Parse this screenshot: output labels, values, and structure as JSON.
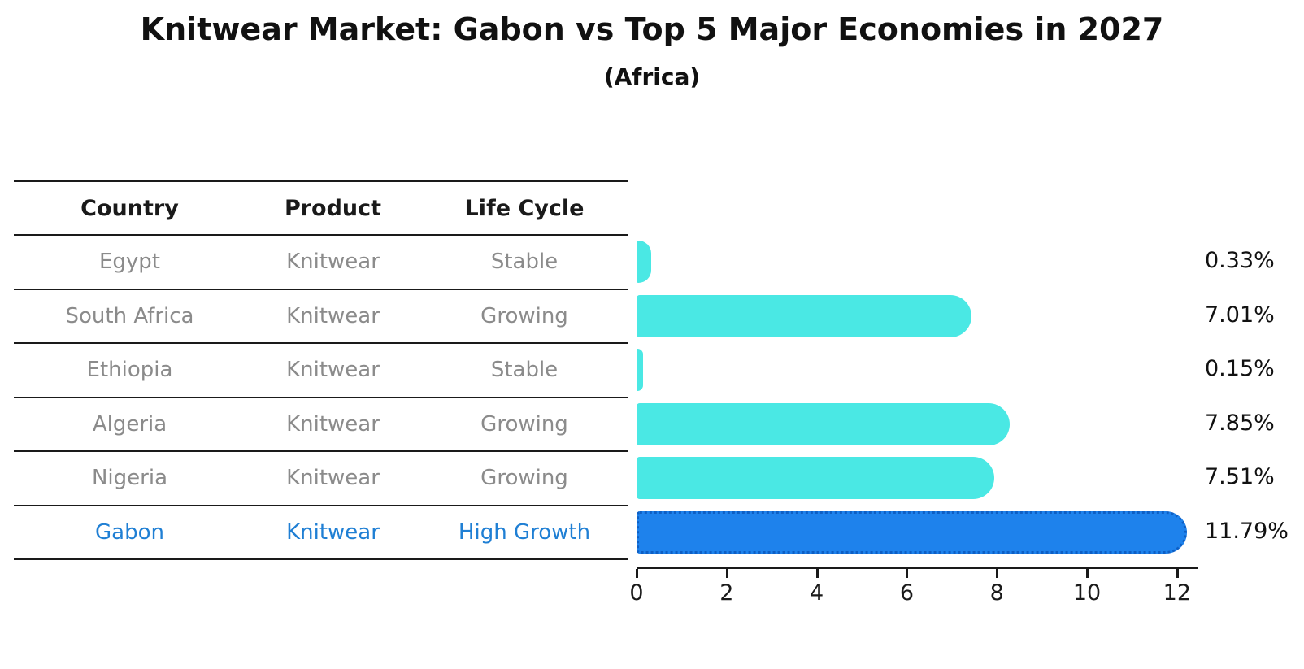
{
  "title": "Knitwear Market: Gabon vs Top 5 Major Economies in 2027",
  "subtitle": "(Africa)",
  "table": {
    "headers": [
      "Country",
      "Product",
      "Life Cycle"
    ],
    "rows": [
      {
        "country": "Egypt",
        "product": "Knitwear",
        "life_cycle": "Stable",
        "highlight": false
      },
      {
        "country": "South Africa",
        "product": "Knitwear",
        "life_cycle": "Growing",
        "highlight": false
      },
      {
        "country": "Ethiopia",
        "product": "Knitwear",
        "life_cycle": "Stable",
        "highlight": false
      },
      {
        "country": "Algeria",
        "product": "Knitwear",
        "life_cycle": "Growing",
        "highlight": false
      },
      {
        "country": "Nigeria",
        "product": "Knitwear",
        "life_cycle": "Growing",
        "highlight": false
      },
      {
        "country": "Gabon",
        "product": "Knitwear",
        "life_cycle": "High Growth",
        "highlight": true
      }
    ]
  },
  "chart_data": {
    "type": "bar",
    "orientation": "horizontal",
    "title": "Knitwear Market: Gabon vs Top 5 Major Economies in 2027",
    "subtitle": "(Africa)",
    "categories": [
      "Egypt",
      "South Africa",
      "Ethiopia",
      "Algeria",
      "Nigeria",
      "Gabon"
    ],
    "values": [
      0.33,
      7.01,
      0.15,
      7.85,
      7.51,
      11.79
    ],
    "value_labels": [
      "0.33%",
      "7.01%",
      "0.15%",
      "7.85%",
      "7.51%",
      "11.79%"
    ],
    "xticks": [
      "0",
      "2",
      "4",
      "6",
      "8",
      "10",
      "12"
    ],
    "xtick_values": [
      0,
      2,
      4,
      6,
      8,
      10,
      12
    ],
    "xlim": [
      0,
      12.4
    ],
    "grid": false,
    "legend": false,
    "highlight_index": 5,
    "colors": {
      "bar": "#4ae8e4",
      "highlight_bar": "#1e82ec",
      "highlight_bar_edge": "#0e5fc4",
      "highlight_text": "#1f7fd4",
      "row_text": "#8b8b8b",
      "axis": "#1a1a1a"
    }
  }
}
